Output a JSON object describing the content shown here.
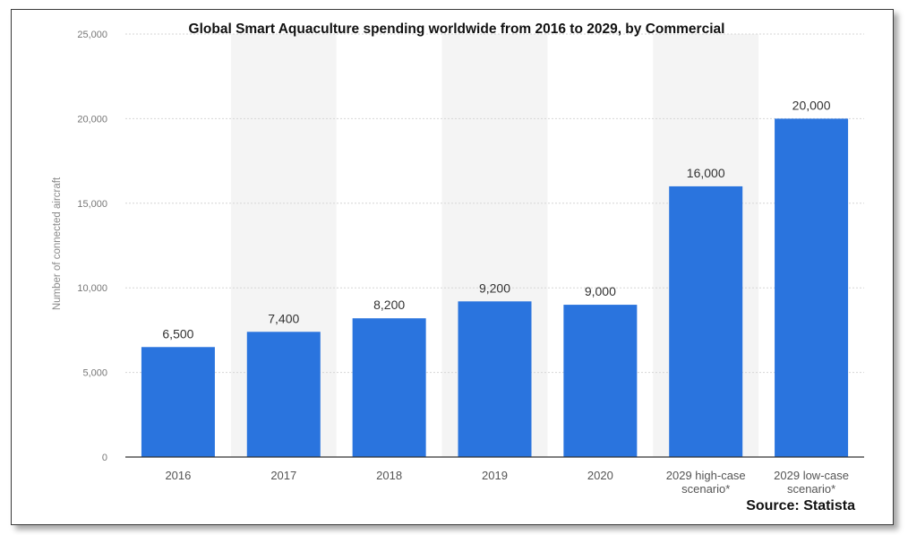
{
  "chart_data": {
    "type": "bar",
    "title": "Global Smart Aquaculture spending worldwide from 2016 to 2029, by Commercial",
    "ylabel": "Number of connected aircraft",
    "xlabel": "",
    "categories": [
      "2016",
      "2017",
      "2018",
      "2019",
      "2020",
      "2029 high-case scenario*",
      "2029 low-case scenario*"
    ],
    "category_lines": [
      [
        "2016"
      ],
      [
        "2017"
      ],
      [
        "2018"
      ],
      [
        "2019"
      ],
      [
        "2020"
      ],
      [
        "2029 high-case",
        "scenario*"
      ],
      [
        "2029 low-case",
        "scenario*"
      ]
    ],
    "values": [
      6500,
      7400,
      8200,
      9200,
      9000,
      16000,
      20000
    ],
    "value_labels": [
      "6,500",
      "7,400",
      "8,200",
      "9,200",
      "9,000",
      "16,000",
      "20,000"
    ],
    "ylim": [
      0,
      25000
    ],
    "yticks": [
      0,
      5000,
      10000,
      15000,
      20000,
      25000
    ],
    "ytick_labels": [
      "0",
      "5,000",
      "10,000",
      "15,000",
      "20,000",
      "25,000"
    ],
    "grid": true,
    "bar_color": "#2a74de",
    "alt_band_color": "#f4f4f4"
  },
  "source": "Source: Statista"
}
